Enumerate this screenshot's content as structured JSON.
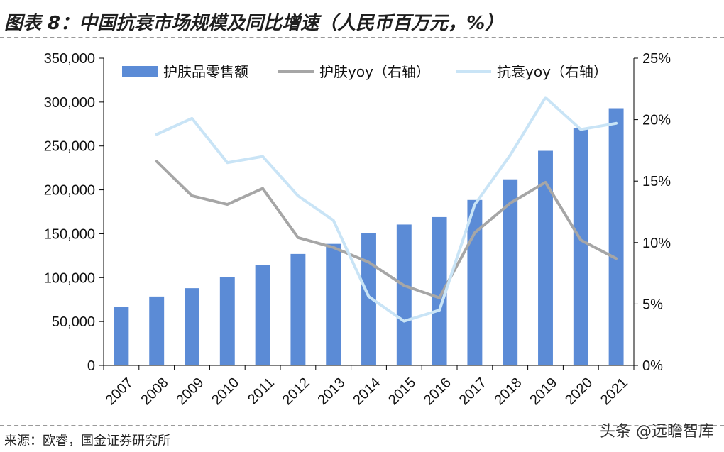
{
  "header": {
    "title": "图表 8：中国抗衰市场规模及同比增速（人民币百万元，%）"
  },
  "footer": {
    "source": "来源：欧睿，国金证券研究所",
    "watermark": "头条 @远瞻智库"
  },
  "colors": {
    "bar": "#5b8bd6",
    "skin_yoy": "#a6a6a6",
    "anti_yoy": "#c9e4f6",
    "axis": "#000000"
  },
  "chart_data": {
    "type": "bar",
    "categories": [
      "2007",
      "2008",
      "2009",
      "2010",
      "2011",
      "2012",
      "2013",
      "2014",
      "2015",
      "2016",
      "2017",
      "2018",
      "2019",
      "2020",
      "2021"
    ],
    "series": [
      {
        "name": "护肤品零售额",
        "type": "bar",
        "axis": "left",
        "values": [
          67000,
          78500,
          88000,
          101000,
          114000,
          127000,
          138500,
          151000,
          160500,
          169000,
          188500,
          212000,
          244500,
          270500,
          293000
        ]
      },
      {
        "name": "护肤yoy（右轴）",
        "type": "line",
        "axis": "right",
        "values": [
          null,
          16.6,
          13.8,
          13.1,
          14.4,
          10.4,
          9.6,
          8.4,
          6.5,
          5.5,
          10.8,
          13.2,
          14.9,
          10.2,
          8.7
        ]
      },
      {
        "name": "抗衰yoy（右轴）",
        "type": "line",
        "axis": "right",
        "values": [
          null,
          18.8,
          20.1,
          16.5,
          17.0,
          13.8,
          11.8,
          5.6,
          3.6,
          4.5,
          13.1,
          17.1,
          21.8,
          19.2,
          19.7
        ]
      }
    ],
    "y_left": {
      "ylim": [
        0,
        350000
      ],
      "ticks": [
        "0",
        "50,000",
        "100,000",
        "150,000",
        "200,000",
        "250,000",
        "300,000",
        "350,000"
      ]
    },
    "y_right": {
      "ylim": [
        0,
        25
      ],
      "ticks": [
        "0%",
        "5%",
        "10%",
        "15%",
        "20%",
        "25%"
      ]
    },
    "legend": "top",
    "grid": false
  }
}
